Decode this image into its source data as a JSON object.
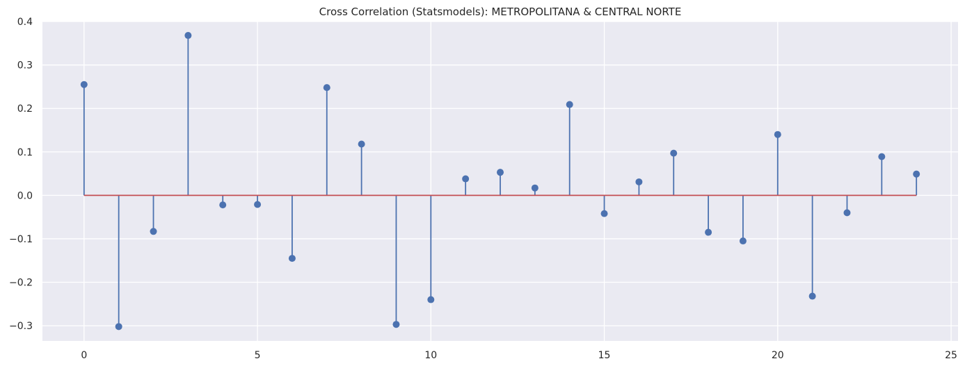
{
  "chart_data": {
    "type": "stem",
    "title": "Cross Correlation (Statsmodels): METROPOLITANA & CENTRAL NORTE",
    "xlabel": "",
    "ylabel": "",
    "x": [
      0,
      1,
      2,
      3,
      4,
      5,
      6,
      7,
      8,
      9,
      10,
      11,
      12,
      13,
      14,
      15,
      16,
      17,
      18,
      19,
      20,
      21,
      22,
      23,
      24
    ],
    "values": [
      0.255,
      -0.302,
      -0.083,
      0.368,
      -0.022,
      -0.021,
      -0.145,
      0.248,
      0.118,
      -0.297,
      -0.24,
      0.038,
      0.053,
      0.017,
      0.209,
      -0.042,
      0.031,
      0.097,
      -0.085,
      -0.105,
      0.14,
      -0.232,
      -0.04,
      0.089,
      0.049
    ],
    "xlim": [
      -1.2,
      25.2
    ],
    "ylim": [
      -0.335,
      0.4
    ],
    "xticks": [
      0,
      5,
      10,
      15,
      20,
      25
    ],
    "yticks": [
      -0.3,
      -0.2,
      -0.1,
      0.0,
      0.1,
      0.2,
      0.3,
      0.4
    ],
    "xtick_labels": [
      "0",
      "5",
      "10",
      "15",
      "20",
      "25"
    ],
    "ytick_labels": [
      "−0.3",
      "−0.2",
      "−0.1",
      "0.0",
      "0.1",
      "0.2",
      "0.3",
      "0.4"
    ],
    "grid": true,
    "colors": {
      "background": "#eaeaf2",
      "stem": "#4c72b0",
      "baseline": "#c44e52",
      "grid": "#ffffff"
    }
  }
}
